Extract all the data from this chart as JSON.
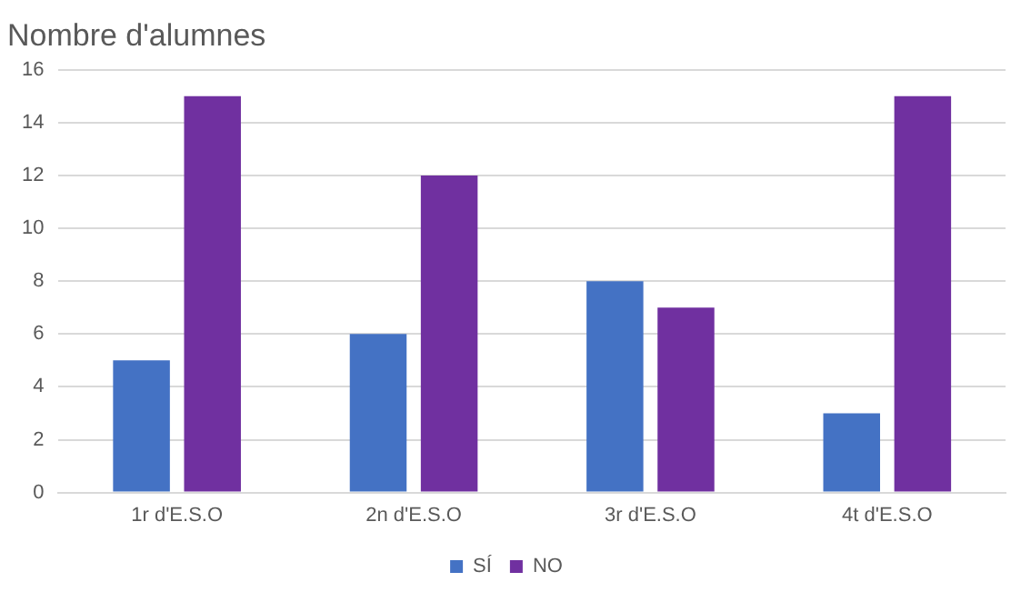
{
  "chart_data": {
    "type": "bar",
    "title": "Nombre d'alumnes",
    "categories": [
      "1r d'E.S.O",
      "2n d'E.S.O",
      "3r d'E.S.O",
      "4t d'E.S.O"
    ],
    "series": [
      {
        "name": "SÍ",
        "color": "#4472c4",
        "values": [
          5,
          6,
          8,
          3
        ]
      },
      {
        "name": "NO",
        "color": "#7030a0",
        "values": [
          15,
          12,
          7,
          15
        ]
      }
    ],
    "ylim": [
      0,
      16
    ],
    "yticks": [
      0,
      2,
      4,
      6,
      8,
      10,
      12,
      14,
      16
    ],
    "grid": "y",
    "legend": "bottom"
  }
}
